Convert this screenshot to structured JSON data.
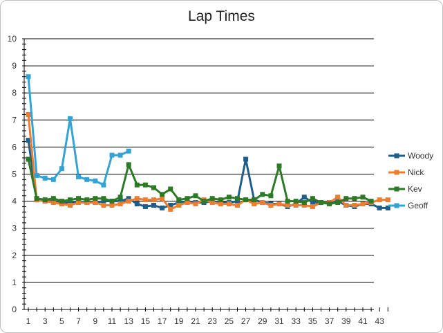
{
  "chart_data": {
    "type": "line",
    "title": "Lap Times",
    "xlabel": "",
    "ylabel": "",
    "ylim": [
      0,
      10
    ],
    "yticks": [
      0,
      1,
      2,
      3,
      4,
      5,
      6,
      7,
      8,
      9,
      10
    ],
    "xlim": [
      1,
      44
    ],
    "xticks": [
      1,
      3,
      5,
      7,
      9,
      11,
      13,
      15,
      17,
      19,
      21,
      23,
      25,
      27,
      29,
      31,
      33,
      35,
      37,
      39,
      41,
      43
    ],
    "grid": "horizontal",
    "legend": "right",
    "series": [
      {
        "name": "Woody",
        "color": "#1f5e88",
        "x": [
          1,
          2,
          3,
          4,
          5,
          6,
          7,
          8,
          9,
          10,
          11,
          12,
          13,
          14,
          15,
          16,
          17,
          18,
          19,
          20,
          21,
          22,
          23,
          24,
          25,
          26,
          27,
          28,
          29,
          30,
          31,
          32,
          33,
          34,
          35,
          36,
          37,
          38,
          39,
          40,
          41,
          42,
          43,
          44
        ],
        "values": [
          6.25,
          4.05,
          4.0,
          4.0,
          3.95,
          3.95,
          4.0,
          3.95,
          3.95,
          4.0,
          4.0,
          4.0,
          4.1,
          3.9,
          3.8,
          3.85,
          3.75,
          3.85,
          3.95,
          4.0,
          3.95,
          3.95,
          4.0,
          3.95,
          3.95,
          4.0,
          5.55,
          4.05,
          3.95,
          3.9,
          3.9,
          3.8,
          3.9,
          4.15,
          3.95,
          3.95,
          3.95,
          4.0,
          3.85,
          3.8,
          3.9,
          3.9,
          3.75,
          3.75
        ]
      },
      {
        "name": "Nick",
        "color": "#ed7d31",
        "x": [
          1,
          2,
          3,
          4,
          5,
          6,
          7,
          8,
          9,
          10,
          11,
          12,
          13,
          14,
          15,
          16,
          17,
          18,
          19,
          20,
          21,
          22,
          23,
          24,
          25,
          26,
          27,
          28,
          29,
          30,
          31,
          32,
          33,
          34,
          35,
          36,
          37,
          38,
          39,
          40,
          41,
          42,
          43,
          44
        ],
        "values": [
          7.2,
          4.05,
          4.0,
          3.95,
          3.9,
          3.85,
          3.95,
          3.95,
          3.95,
          3.85,
          3.85,
          3.9,
          4.0,
          4.1,
          4.05,
          4.05,
          4.1,
          3.7,
          3.85,
          3.95,
          3.9,
          4.05,
          3.95,
          3.9,
          3.9,
          3.85,
          4.05,
          3.9,
          3.95,
          3.85,
          3.9,
          3.85,
          3.85,
          3.85,
          3.8,
          3.95,
          3.95,
          4.15,
          3.85,
          3.85,
          3.9,
          3.95,
          4.05,
          4.05
        ]
      },
      {
        "name": "Kev",
        "color": "#2c7a26",
        "x": [
          1,
          2,
          3,
          4,
          5,
          6,
          7,
          8,
          9,
          10,
          11,
          12,
          13,
          14,
          15,
          16,
          17,
          18,
          19,
          20,
          21,
          22,
          23,
          24,
          25,
          26,
          27,
          28,
          29,
          30,
          31,
          32,
          33,
          34,
          35,
          36,
          37,
          38,
          39,
          40,
          41,
          42
        ],
        "values": [
          5.55,
          4.1,
          4.05,
          4.1,
          4.0,
          4.05,
          4.1,
          4.05,
          4.1,
          4.1,
          4.0,
          4.15,
          5.35,
          4.6,
          4.6,
          4.5,
          4.25,
          4.45,
          4.05,
          4.1,
          4.2,
          4.0,
          4.1,
          4.05,
          4.15,
          4.1,
          4.05,
          4.05,
          4.25,
          4.2,
          5.3,
          4.0,
          4.0,
          3.95,
          4.1,
          3.95,
          3.9,
          3.95,
          4.1,
          4.1,
          4.15,
          4.0
        ]
      },
      {
        "name": "Geoff",
        "color": "#33a3d6",
        "x": [
          1,
          2,
          3,
          4,
          5,
          6,
          7,
          8,
          9,
          10,
          11,
          12,
          13
        ],
        "values": [
          8.6,
          4.95,
          4.85,
          4.8,
          5.2,
          7.05,
          4.9,
          4.8,
          4.75,
          4.6,
          5.7,
          5.7,
          5.85
        ]
      }
    ]
  }
}
